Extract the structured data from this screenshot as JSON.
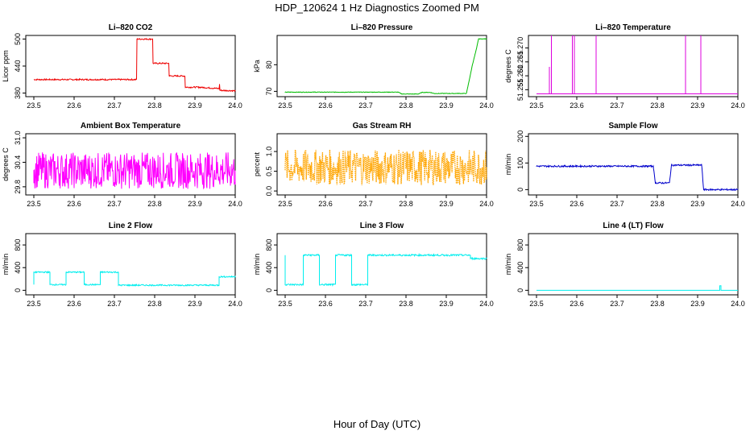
{
  "figure": {
    "title": "HDP_120624  1 Hz Diagnostics Zoomed PM",
    "xlabel": "Hour of Day (UTC)"
  },
  "chart_data": [
    {
      "type": "line",
      "title": "Li–820 CO2",
      "ylabel": "Licor ppm",
      "color": "#ee0000",
      "xticks": [
        "23.5",
        "23.6",
        "23.7",
        "23.8",
        "23.9",
        "24.0"
      ],
      "xlim": [
        23.48,
        24.0
      ],
      "yticks": [
        "380",
        "440",
        "500"
      ],
      "ylim": [
        372,
        508
      ],
      "series": [
        {
          "x": [
            23.5,
            23.755,
            23.756,
            23.795,
            23.796,
            23.835,
            23.836,
            23.875,
            23.876,
            23.91,
            23.96,
            23.961,
            23.962,
            24.0
          ],
          "y": [
            410,
            410,
            500,
            500,
            446,
            446,
            418,
            418,
            393,
            393,
            390,
            400,
            386,
            385
          ],
          "noise": 1.5
        }
      ]
    },
    {
      "type": "line",
      "title": "Li–820 Pressure",
      "ylabel": "kPa",
      "color": "#00bb00",
      "xticks": [
        "23.5",
        "23.6",
        "23.7",
        "23.8",
        "23.9",
        "24.0"
      ],
      "xlim": [
        23.48,
        24.0
      ],
      "yticks": [
        "70",
        "80"
      ],
      "ylim": [
        68,
        91
      ],
      "series": [
        {
          "x": [
            23.5,
            23.78,
            23.79,
            23.83,
            23.84,
            23.86,
            23.87,
            23.95,
            23.965,
            23.975,
            23.98,
            24.0
          ],
          "y": [
            69.7,
            69.7,
            69.0,
            69.0,
            69.6,
            69.6,
            69.2,
            69.2,
            80,
            86,
            89.7,
            89.7
          ],
          "noise": 0.1
        }
      ]
    },
    {
      "type": "line",
      "title": "Li–820 Temperature",
      "ylabel": "degrees C",
      "color": "#dd00dd",
      "xticks": [
        "23.5",
        "23.6",
        "23.7",
        "23.8",
        "23.9",
        "24.0"
      ],
      "xlim": [
        23.48,
        24.0
      ],
      "yticks": [
        "51.255",
        "51.260",
        "51.265",
        "51.270"
      ],
      "ylim": [
        51.2525,
        51.2745
      ],
      "series": [
        {
          "x": [
            23.5,
            23.532,
            23.532,
            23.532,
            23.537,
            23.537,
            23.537,
            23.589,
            23.589,
            23.589,
            23.594,
            23.594,
            23.594,
            23.648,
            23.648,
            23.648,
            23.87,
            23.87,
            23.87,
            23.908,
            23.908,
            23.908,
            24.0
          ],
          "y": [
            51.2535,
            51.2535,
            51.2632,
            51.2535,
            51.2535,
            51.2745,
            51.2535,
            51.2535,
            51.2745,
            51.2535,
            51.2535,
            51.2745,
            51.2535,
            51.2535,
            51.2745,
            51.2535,
            51.2535,
            51.2745,
            51.2535,
            51.2535,
            51.2745,
            51.2535,
            51.2535
          ],
          "noise": 0
        }
      ]
    },
    {
      "type": "line",
      "title": "Ambient Box Temperature",
      "ylabel": "degrees C",
      "color": "#ff00ff",
      "xticks": [
        "23.5",
        "23.6",
        "23.7",
        "23.8",
        "23.9",
        "24.0"
      ],
      "xlim": [
        23.48,
        24.0
      ],
      "yticks": [
        "29.8",
        "30.4",
        "31.0"
      ],
      "ylim": [
        29.6,
        31.1
      ],
      "series": [
        {
          "x": [
            23.5,
            24.0
          ],
          "y": [
            30.2,
            30.2
          ],
          "noise": 0.45
        }
      ]
    },
    {
      "type": "scatter",
      "title": "Gas Stream RH",
      "ylabel": "percent",
      "color": "#ffa500",
      "xticks": [
        "23.5",
        "23.6",
        "23.7",
        "23.8",
        "23.9",
        "24.0"
      ],
      "xlim": [
        23.48,
        24.0
      ],
      "yticks": [
        "0.0",
        "0.5",
        "1.0"
      ],
      "ylim": [
        -0.1,
        1.45
      ],
      "series": [
        {
          "x": [
            23.5,
            24.0
          ],
          "y": [
            0.6,
            0.6
          ],
          "noise": 0.45
        }
      ]
    },
    {
      "type": "line",
      "title": "Sample Flow",
      "ylabel": "ml/min",
      "color": "#0000cc",
      "xticks": [
        "23.5",
        "23.6",
        "23.7",
        "23.8",
        "23.9",
        "24.0"
      ],
      "xlim": [
        23.48,
        24.0
      ],
      "yticks": [
        "0",
        "100",
        "200"
      ],
      "ylim": [
        -20,
        210
      ],
      "series": [
        {
          "x": [
            23.5,
            23.79,
            23.795,
            23.83,
            23.835,
            23.91,
            23.915,
            24.0
          ],
          "y": [
            88,
            88,
            25,
            25,
            92,
            92,
            0,
            0
          ],
          "noise": 3
        }
      ]
    },
    {
      "type": "line",
      "title": "Line 2 Flow",
      "ylabel": "ml/min",
      "color": "#00eeee",
      "xticks": [
        "23.5",
        "23.6",
        "23.7",
        "23.8",
        "23.9",
        "24.0"
      ],
      "xlim": [
        23.48,
        24.0
      ],
      "yticks": [
        "0",
        "400",
        "800"
      ],
      "ylim": [
        -80,
        1000
      ],
      "series": [
        {
          "x": [
            23.5,
            23.5,
            23.54,
            23.54,
            23.58,
            23.58,
            23.625,
            23.625,
            23.665,
            23.665,
            23.71,
            23.71,
            23.96,
            23.96,
            24.0
          ],
          "y": [
            100,
            320,
            320,
            100,
            100,
            320,
            320,
            100,
            100,
            320,
            320,
            90,
            90,
            240,
            240
          ],
          "noise": 12
        }
      ]
    },
    {
      "type": "line",
      "title": "Line 3 Flow",
      "ylabel": "ml/min",
      "color": "#00eeee",
      "xticks": [
        "23.5",
        "23.6",
        "23.7",
        "23.8",
        "23.9",
        "24.0"
      ],
      "xlim": [
        23.48,
        24.0
      ],
      "yticks": [
        "0",
        "400",
        "800"
      ],
      "ylim": [
        -80,
        1000
      ],
      "series": [
        {
          "x": [
            23.5,
            23.5,
            23.5,
            23.545,
            23.545,
            23.585,
            23.585,
            23.625,
            23.625,
            23.665,
            23.665,
            23.705,
            23.705,
            23.96,
            23.96,
            24.0
          ],
          "y": [
            100,
            620,
            100,
            100,
            620,
            620,
            100,
            100,
            620,
            620,
            100,
            100,
            620,
            620,
            560,
            560
          ],
          "noise": 15
        }
      ]
    },
    {
      "type": "line",
      "title": "Line 4 (LT) Flow",
      "ylabel": "ml/min",
      "color": "#00eeee",
      "xticks": [
        "23.5",
        "23.6",
        "23.7",
        "23.8",
        "23.9",
        "24.0"
      ],
      "xlim": [
        23.48,
        24.0
      ],
      "yticks": [
        "0",
        "400",
        "800"
      ],
      "ylim": [
        -80,
        1000
      ],
      "series": [
        {
          "x": [
            23.5,
            23.955,
            23.955,
            23.958,
            23.958,
            24.0
          ],
          "y": [
            0,
            0,
            80,
            80,
            0,
            0
          ],
          "noise": 0
        }
      ]
    }
  ]
}
